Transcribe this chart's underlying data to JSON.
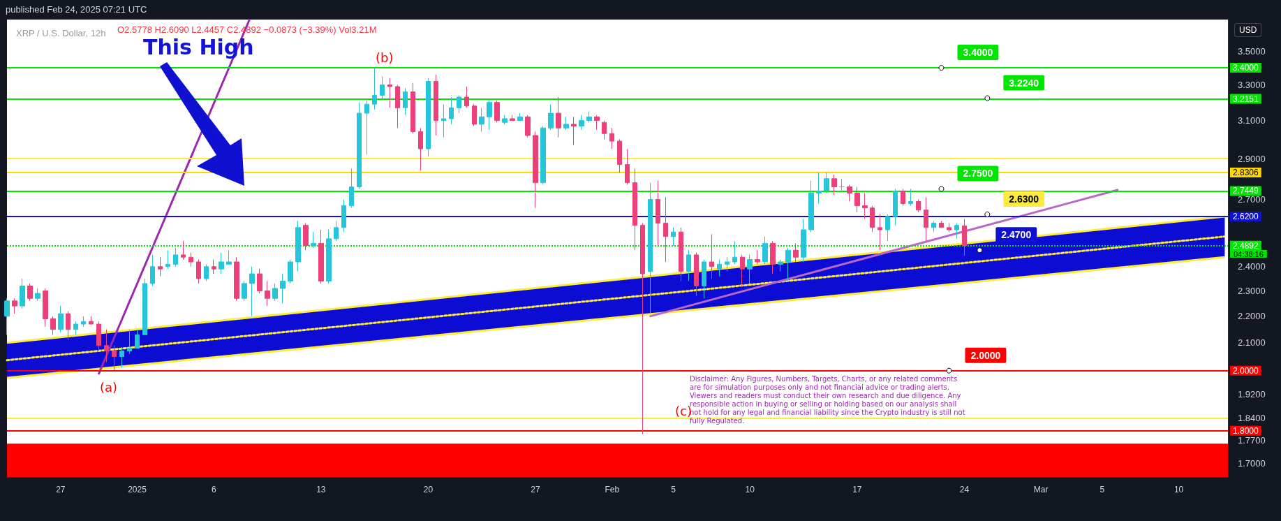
{
  "chart_data": {
    "type": "candlestick",
    "title": "XRP / U.S. Dollar, 12h",
    "x": [
      "2024-12-23T12:00",
      "2024-12-24T00:00",
      "2024-12-24T12:00",
      "2024-12-25T00:00",
      "2024-12-25T12:00",
      "2024-12-26T00:00",
      "2024-12-26T12:00",
      "2024-12-27T00:00",
      "2024-12-27T12:00",
      "2024-12-28T00:00",
      "2024-12-28T12:00",
      "2024-12-29T00:00",
      "2024-12-29T12:00",
      "2024-12-30T00:00",
      "2024-12-30T12:00",
      "2024-12-31T00:00",
      "2024-12-31T12:00",
      "2025-01-01T00:00",
      "2025-01-01T12:00",
      "2025-01-02T00:00",
      "2025-01-02T12:00",
      "2025-01-03T00:00",
      "2025-01-03T12:00",
      "2025-01-04T00:00",
      "2025-01-04T12:00",
      "2025-01-05T00:00",
      "2025-01-05T12:00",
      "2025-01-06T00:00",
      "2025-01-06T12:00",
      "2025-01-07T00:00",
      "2025-01-07T12:00",
      "2025-01-08T00:00",
      "2025-01-08T12:00",
      "2025-01-09T00:00",
      "2025-01-09T12:00",
      "2025-01-10T00:00",
      "2025-01-10T12:00",
      "2025-01-11T00:00",
      "2025-01-11T12:00",
      "2025-01-12T00:00",
      "2025-01-12T12:00",
      "2025-01-13T00:00",
      "2025-01-13T12:00",
      "2025-01-14T00:00",
      "2025-01-14T12:00",
      "2025-01-15T00:00",
      "2025-01-15T12:00",
      "2025-01-16T00:00",
      "2025-01-16T12:00",
      "2025-01-17T00:00",
      "2025-01-17T12:00",
      "2025-01-18T00:00",
      "2025-01-18T12:00",
      "2025-01-19T00:00",
      "2025-01-19T12:00",
      "2025-01-20T00:00",
      "2025-01-20T12:00",
      "2025-01-21T00:00",
      "2025-01-21T12:00",
      "2025-01-22T00:00",
      "2025-01-22T12:00",
      "2025-01-23T00:00",
      "2025-01-23T12:00",
      "2025-01-24T00:00",
      "2025-01-24T12:00",
      "2025-01-25T00:00",
      "2025-01-25T12:00",
      "2025-01-26T00:00",
      "2025-01-26T12:00",
      "2025-01-27T00:00",
      "2025-01-27T12:00",
      "2025-01-28T00:00",
      "2025-01-28T12:00",
      "2025-01-29T00:00",
      "2025-01-29T12:00",
      "2025-01-30T00:00",
      "2025-01-30T12:00",
      "2025-01-31T00:00",
      "2025-01-31T12:00",
      "2025-02-01T00:00",
      "2025-02-01T12:00",
      "2025-02-02T00:00",
      "2025-02-02T12:00",
      "2025-02-03T00:00",
      "2025-02-03T12:00",
      "2025-02-04T00:00",
      "2025-02-04T12:00",
      "2025-02-05T00:00",
      "2025-02-05T12:00",
      "2025-02-06T00:00",
      "2025-02-06T12:00",
      "2025-02-07T00:00",
      "2025-02-07T12:00",
      "2025-02-08T00:00",
      "2025-02-08T12:00",
      "2025-02-09T00:00",
      "2025-02-09T12:00",
      "2025-02-10T00:00",
      "2025-02-10T12:00",
      "2025-02-11T00:00",
      "2025-02-11T12:00",
      "2025-02-12T00:00",
      "2025-02-12T12:00",
      "2025-02-13T00:00",
      "2025-02-13T12:00",
      "2025-02-14T00:00",
      "2025-02-14T12:00",
      "2025-02-15T00:00",
      "2025-02-15T12:00",
      "2025-02-16T00:00",
      "2025-02-16T12:00",
      "2025-02-17T00:00",
      "2025-02-17T12:00",
      "2025-02-18T00:00",
      "2025-02-18T12:00",
      "2025-02-19T00:00",
      "2025-02-19T12:00",
      "2025-02-20T00:00",
      "2025-02-20T12:00",
      "2025-02-21T00:00",
      "2025-02-21T12:00",
      "2025-02-22T00:00",
      "2025-02-22T12:00",
      "2025-02-23T00:00",
      "2025-02-23T12:00",
      "2025-02-24T00:00"
    ],
    "ohlc": [
      [
        2.2,
        2.27,
        2.13,
        2.26
      ],
      [
        2.26,
        2.27,
        2.21,
        2.24
      ],
      [
        2.24,
        2.35,
        2.23,
        2.32
      ],
      [
        2.32,
        2.33,
        2.26,
        2.27
      ],
      [
        2.27,
        2.31,
        2.26,
        2.29
      ],
      [
        2.3,
        2.31,
        2.16,
        2.19
      ],
      [
        2.19,
        2.2,
        2.13,
        2.15
      ],
      [
        2.15,
        2.24,
        2.14,
        2.21
      ],
      [
        2.21,
        2.22,
        2.11,
        2.15
      ],
      [
        2.15,
        2.18,
        2.13,
        2.17
      ],
      [
        2.17,
        2.2,
        2.16,
        2.18
      ],
      [
        2.18,
        2.2,
        2.17,
        2.17
      ],
      [
        2.17,
        2.18,
        2.07,
        2.09
      ],
      [
        2.09,
        2.15,
        2.03,
        2.07
      ],
      [
        2.07,
        2.09,
        2.0,
        2.05
      ],
      [
        2.05,
        2.08,
        2.01,
        2.07
      ],
      [
        2.07,
        2.15,
        2.06,
        2.08
      ],
      [
        2.08,
        2.15,
        2.08,
        2.13
      ],
      [
        2.13,
        2.35,
        2.13,
        2.33
      ],
      [
        2.33,
        2.45,
        2.32,
        2.4
      ],
      [
        2.4,
        2.44,
        2.36,
        2.39
      ],
      [
        2.4,
        2.47,
        2.39,
        2.41
      ],
      [
        2.41,
        2.48,
        2.4,
        2.45
      ],
      [
        2.45,
        2.51,
        2.43,
        2.44
      ],
      [
        2.44,
        2.46,
        2.4,
        2.42
      ],
      [
        2.42,
        2.43,
        2.33,
        2.35
      ],
      [
        2.35,
        2.41,
        2.34,
        2.4
      ],
      [
        2.4,
        2.43,
        2.37,
        2.39
      ],
      [
        2.39,
        2.46,
        2.37,
        2.42
      ],
      [
        2.41,
        2.47,
        2.41,
        2.42
      ],
      [
        2.42,
        2.44,
        2.26,
        2.27
      ],
      [
        2.27,
        2.34,
        2.26,
        2.33
      ],
      [
        2.33,
        2.4,
        2.2,
        2.37
      ],
      [
        2.37,
        2.39,
        2.29,
        2.3
      ],
      [
        2.3,
        2.34,
        2.24,
        2.27
      ],
      [
        2.27,
        2.33,
        2.26,
        2.31
      ],
      [
        2.31,
        2.37,
        2.25,
        2.34
      ],
      [
        2.34,
        2.43,
        2.33,
        2.42
      ],
      [
        2.42,
        2.6,
        2.38,
        2.57
      ],
      [
        2.58,
        2.59,
        2.47,
        2.49
      ],
      [
        2.49,
        2.55,
        2.48,
        2.5
      ],
      [
        2.5,
        2.56,
        2.33,
        2.34
      ],
      [
        2.34,
        2.56,
        2.33,
        2.52
      ],
      [
        2.52,
        2.6,
        2.51,
        2.57
      ],
      [
        2.57,
        2.7,
        2.55,
        2.67
      ],
      [
        2.67,
        2.85,
        2.66,
        2.76
      ],
      [
        2.76,
        3.2,
        2.75,
        3.14
      ],
      [
        3.14,
        3.21,
        2.92,
        3.19
      ],
      [
        3.19,
        3.4,
        3.16,
        3.24
      ],
      [
        3.24,
        3.35,
        3.22,
        3.3
      ],
      [
        3.3,
        3.34,
        3.17,
        3.29
      ],
      [
        3.29,
        3.3,
        3.06,
        3.17
      ],
      [
        3.17,
        3.28,
        3.13,
        3.26
      ],
      [
        3.26,
        3.31,
        3.03,
        3.04
      ],
      [
        3.04,
        3.06,
        2.84,
        2.95
      ],
      [
        2.95,
        3.34,
        2.91,
        3.32
      ],
      [
        3.32,
        3.36,
        3.02,
        3.1
      ],
      [
        3.1,
        3.19,
        3.01,
        3.11
      ],
      [
        3.11,
        3.23,
        3.08,
        3.17
      ],
      [
        3.17,
        3.24,
        3.14,
        3.23
      ],
      [
        3.23,
        3.29,
        3.17,
        3.18
      ],
      [
        3.18,
        3.19,
        3.07,
        3.08
      ],
      [
        3.08,
        3.17,
        3.04,
        3.12
      ],
      [
        3.12,
        3.21,
        3.05,
        3.2
      ],
      [
        3.2,
        3.21,
        3.09,
        3.1
      ],
      [
        3.09,
        3.13,
        3.08,
        3.11
      ],
      [
        3.11,
        3.13,
        3.1,
        3.1
      ],
      [
        3.1,
        3.14,
        3.1,
        3.12
      ],
      [
        3.12,
        3.13,
        3.01,
        3.02
      ],
      [
        3.02,
        3.04,
        2.66,
        2.78
      ],
      [
        2.78,
        3.07,
        2.77,
        3.06
      ],
      [
        3.06,
        3.19,
        3.05,
        3.14
      ],
      [
        3.14,
        3.23,
        3.01,
        3.06
      ],
      [
        3.06,
        3.12,
        3.05,
        3.08
      ],
      [
        3.08,
        3.12,
        2.97,
        3.07
      ],
      [
        3.07,
        3.13,
        3.05,
        3.1
      ],
      [
        3.1,
        3.15,
        3.09,
        3.12
      ],
      [
        3.12,
        3.13,
        3.05,
        3.1
      ],
      [
        3.09,
        3.1,
        3.0,
        3.03
      ],
      [
        3.03,
        3.06,
        2.95,
        2.99
      ],
      [
        2.99,
        3.0,
        2.83,
        2.87
      ],
      [
        2.87,
        2.95,
        2.77,
        2.78
      ],
      [
        2.78,
        2.85,
        2.47,
        2.58
      ],
      [
        2.58,
        2.59,
        1.79,
        2.37
      ],
      [
        2.38,
        2.78,
        2.21,
        2.7
      ],
      [
        2.7,
        2.79,
        2.49,
        2.59
      ],
      [
        2.59,
        2.71,
        2.42,
        2.53
      ],
      [
        2.53,
        2.57,
        2.49,
        2.55
      ],
      [
        2.55,
        2.57,
        2.34,
        2.38
      ],
      [
        2.38,
        2.47,
        2.34,
        2.45
      ],
      [
        2.45,
        2.46,
        2.28,
        2.32
      ],
      [
        2.32,
        2.43,
        2.27,
        2.42
      ],
      [
        2.42,
        2.54,
        2.35,
        2.4
      ],
      [
        2.39,
        2.43,
        2.36,
        2.41
      ],
      [
        2.41,
        2.44,
        2.38,
        2.42
      ],
      [
        2.42,
        2.51,
        2.41,
        2.44
      ],
      [
        2.44,
        2.45,
        2.32,
        2.39
      ],
      [
        2.39,
        2.45,
        2.33,
        2.43
      ],
      [
        2.43,
        2.47,
        2.41,
        2.42
      ],
      [
        2.42,
        2.53,
        2.41,
        2.5
      ],
      [
        2.5,
        2.51,
        2.37,
        2.41
      ],
      [
        2.41,
        2.43,
        2.38,
        2.42
      ],
      [
        2.42,
        2.48,
        2.34,
        2.47
      ],
      [
        2.47,
        2.5,
        2.42,
        2.44
      ],
      [
        2.44,
        2.61,
        2.42,
        2.56
      ],
      [
        2.56,
        2.79,
        2.55,
        2.73
      ],
      [
        2.73,
        2.83,
        2.68,
        2.74
      ],
      [
        2.74,
        2.83,
        2.73,
        2.8
      ],
      [
        2.8,
        2.82,
        2.72,
        2.76
      ],
      [
        2.76,
        2.8,
        2.74,
        2.76
      ],
      [
        2.76,
        2.77,
        2.69,
        2.73
      ],
      [
        2.73,
        2.76,
        2.64,
        2.67
      ],
      [
        2.67,
        2.73,
        2.61,
        2.66
      ],
      [
        2.66,
        2.67,
        2.55,
        2.57
      ],
      [
        2.57,
        2.63,
        2.47,
        2.56
      ],
      [
        2.56,
        2.63,
        2.51,
        2.62
      ],
      [
        2.62,
        2.75,
        2.58,
        2.74
      ],
      [
        2.74,
        2.75,
        2.67,
        2.68
      ],
      [
        2.68,
        2.75,
        2.67,
        2.69
      ],
      [
        2.69,
        2.7,
        2.64,
        2.65
      ],
      [
        2.65,
        2.71,
        2.51,
        2.57
      ],
      [
        2.57,
        2.6,
        2.55,
        2.59
      ],
      [
        2.59,
        2.6,
        2.57,
        2.57
      ],
      [
        2.57,
        2.59,
        2.55,
        2.56
      ],
      [
        2.56,
        2.59,
        2.52,
        2.58
      ],
      [
        2.5778,
        2.609,
        2.4457,
        2.4892
      ]
    ],
    "colors": [
      "#26c6da",
      "#ec407a",
      "#26c6da",
      "#ec407a",
      "#26c6da",
      "#ec407a",
      "#ec407a",
      "#26c6da",
      "#ec407a",
      "#26c6da",
      "#26c6da",
      "#ec407a",
      "#ec407a",
      "#ec407a",
      "#ec407a",
      "#26c6da",
      "#26c6da",
      "#26c6da",
      "#26c6da",
      "#26c6da",
      "#ec407a",
      "#26c6da",
      "#26c6da",
      "#ec407a",
      "#ec407a",
      "#ec407a",
      "#26c6da",
      "#ec407a",
      "#26c6da",
      "#26c6da",
      "#ec407a",
      "#26c6da",
      "#26c6da",
      "#ec407a",
      "#ec407a",
      "#26c6da",
      "#26c6da",
      "#26c6da",
      "#26c6da",
      "#ec407a",
      "#26c6da",
      "#ec407a",
      "#26c6da",
      "#26c6da",
      "#26c6da",
      "#26c6da",
      "#26c6da",
      "#26c6da",
      "#26c6da",
      "#26c6da",
      "#ec407a",
      "#ec407a",
      "#26c6da",
      "#ec407a",
      "#ec407a",
      "#26c6da",
      "#ec407a",
      "#26c6da",
      "#26c6da",
      "#26c6da",
      "#ec407a",
      "#ec407a",
      "#26c6da",
      "#26c6da",
      "#ec407a",
      "#26c6da",
      "#ec407a",
      "#26c6da",
      "#ec407a",
      "#ec407a",
      "#26c6da",
      "#26c6da",
      "#ec407a",
      "#26c6da",
      "#ec407a",
      "#26c6da",
      "#26c6da",
      "#ec407a",
      "#ec407a",
      "#ec407a",
      "#ec407a",
      "#ec407a",
      "#ec407a",
      "#ec407a",
      "#26c6da",
      "#ec407a",
      "#ec407a",
      "#26c6da",
      "#ec407a",
      "#26c6da",
      "#ec407a",
      "#26c6da",
      "#ec407a",
      "#26c6da",
      "#26c6da",
      "#26c6da",
      "#ec407a",
      "#26c6da",
      "#ec407a",
      "#26c6da",
      "#ec407a",
      "#26c6da",
      "#26c6da",
      "#ec407a",
      "#26c6da",
      "#26c6da",
      "#26c6da",
      "#26c6da",
      "#ec407a",
      "#26c6da",
      "#ec407a",
      "#ec407a",
      "#ec407a",
      "#ec407a",
      "#ec407a",
      "#26c6da",
      "#26c6da",
      "#ec407a",
      "#26c6da",
      "#ec407a",
      "#ec407a",
      "#26c6da",
      "#ec407a",
      "#ec407a",
      "#26c6da",
      "#ec407a"
    ],
    "series": [
      {
        "type": "line",
        "x": [
          "2024-12-23T12:00",
          "2025-03-13T00:00"
        ],
        "values": [
          2.037,
          2.53
        ],
        "lower": [
          1.975,
          2.44
        ],
        "upper": [
          2.1,
          2.62
        ],
        "color": "#ffeb3b",
        "line_style": "dotted"
      },
      {
        "type": "line",
        "x": [
          "2024-12-29T12:00",
          "2025-01-08T08:00"
        ],
        "values": [
          1.99,
          3.7
        ],
        "color": "#9c27b0",
        "line_style": "solid"
      },
      {
        "type": "line",
        "x": [
          "2025-02-03T12:00",
          "2025-03-06T00:00"
        ],
        "values": [
          2.2,
          2.745
        ],
        "color": "#ba68c8",
        "line_style": "solid"
      }
    ],
    "xlim": [
      "2024-12-23T12:00",
      "2025-03-13T05:00"
    ],
    "xticks": [
      {
        "value": "2024-12-27",
        "label": "27"
      },
      {
        "value": "2025-01-01",
        "label": "2025"
      },
      {
        "value": "2025-01-06",
        "label": "6"
      },
      {
        "value": "2025-01-13",
        "label": "13"
      },
      {
        "value": "2025-01-20",
        "label": "20"
      },
      {
        "value": "2025-01-27",
        "label": "27"
      },
      {
        "value": "2025-02-01",
        "label": "Feb"
      },
      {
        "value": "2025-02-05",
        "label": "5"
      },
      {
        "value": "2025-02-10",
        "label": "10"
      },
      {
        "value": "2025-02-17",
        "label": "17"
      },
      {
        "value": "2025-02-24",
        "label": "24"
      },
      {
        "value": "2025-03-01",
        "label": "Mar"
      },
      {
        "value": "2025-03-05",
        "label": "5"
      },
      {
        "value": "2025-03-10",
        "label": "10"
      }
    ],
    "ylim": [
      1.66,
      3.7
    ],
    "log": "y",
    "yticks": [
      {
        "value": 1.7,
        "label": "1.7000"
      },
      {
        "value": 1.77,
        "label": "1.7700"
      },
      {
        "value": 1.84,
        "label": "1.8400"
      },
      {
        "value": 1.92,
        "label": "1.9200"
      },
      {
        "value": 2.1,
        "label": "2.1000"
      },
      {
        "value": 2.2,
        "label": "2.2000"
      },
      {
        "value": 2.3,
        "label": "2.3000"
      },
      {
        "value": 2.4,
        "label": "2.4000"
      },
      {
        "value": 2.7,
        "label": "2.7000"
      },
      {
        "value": 2.9,
        "label": "2.9000"
      },
      {
        "value": 3.1,
        "label": "3.1000"
      },
      {
        "value": 3.3,
        "label": "3.3000"
      },
      {
        "value": 3.5,
        "label": "3.5000"
      }
    ],
    "ref_lines": [
      {
        "axis": "y",
        "value": 3.4,
        "label": "3.4000",
        "color": "#00e600"
      },
      {
        "axis": "y",
        "value": 3.2151,
        "label": "3.2151",
        "color": "#00e600"
      },
      {
        "axis": "y",
        "value": 2.9,
        "color": "#ffeb3b"
      },
      {
        "axis": "y",
        "value": 2.8306,
        "label": "2.8306",
        "color": "#ffd700"
      },
      {
        "axis": "y",
        "value": 2.7449,
        "label": "2.7449",
        "color": "#00e600"
      },
      {
        "axis": "y",
        "value": 2.62,
        "label": "2.6200",
        "color": "#1010d0"
      },
      {
        "axis": "y",
        "value": 2.4892,
        "label": "2.4892",
        "color": "#00e600",
        "line_style": "dotted"
      },
      {
        "axis": "y",
        "value": 2.0,
        "label": "2.0000",
        "color": "#ff0000"
      },
      {
        "axis": "y",
        "value": 1.84,
        "color": "#ffeb3b"
      },
      {
        "axis": "y",
        "value": 1.8,
        "label": "1.8000",
        "color": "#ff0000"
      }
    ],
    "bands": [
      {
        "axis": "y",
        "from": 1.66,
        "to": 1.76,
        "color": "#ff0000"
      }
    ],
    "annotations": [
      "published Feb 24, 2025 07:21 UTC",
      "O2.5778 H2.6090 L2.4457 C2.4892 −0.0873 (−3.39%) Vol3.21M",
      "This High",
      "USD",
      "04:38:16",
      "Disclaimer: Any Figures, Numbers, Targets, Charts, or any related comments are for simulation purposes only and not financial advice or trading alerts. Viewers and readers must conduct their own research and due diligence. Any responsible action in buying or selling or holding based on our analysis shall not hold for any legal and financial liability since the Crypto industry is still not fully Regulated.",
      "(a)",
      "(b)",
      "(c)",
      {
        "text": "3.4000",
        "x": "2025-02-22T12:00",
        "y": 3.4
      },
      {
        "text": "3.2240",
        "x": "2025-02-25T12:00",
        "y": 3.224
      },
      {
        "text": "2.7500",
        "x": "2025-02-22T12:00",
        "y": 2.75
      },
      {
        "text": "2.6300",
        "x": "2025-02-25T12:00",
        "y": 2.63
      },
      {
        "text": "2.4700",
        "x": "2025-02-25T00:00",
        "y": 2.47
      },
      {
        "text": "2.0000",
        "x": "2025-02-23T00:00",
        "y": 2.0
      }
    ]
  }
}
